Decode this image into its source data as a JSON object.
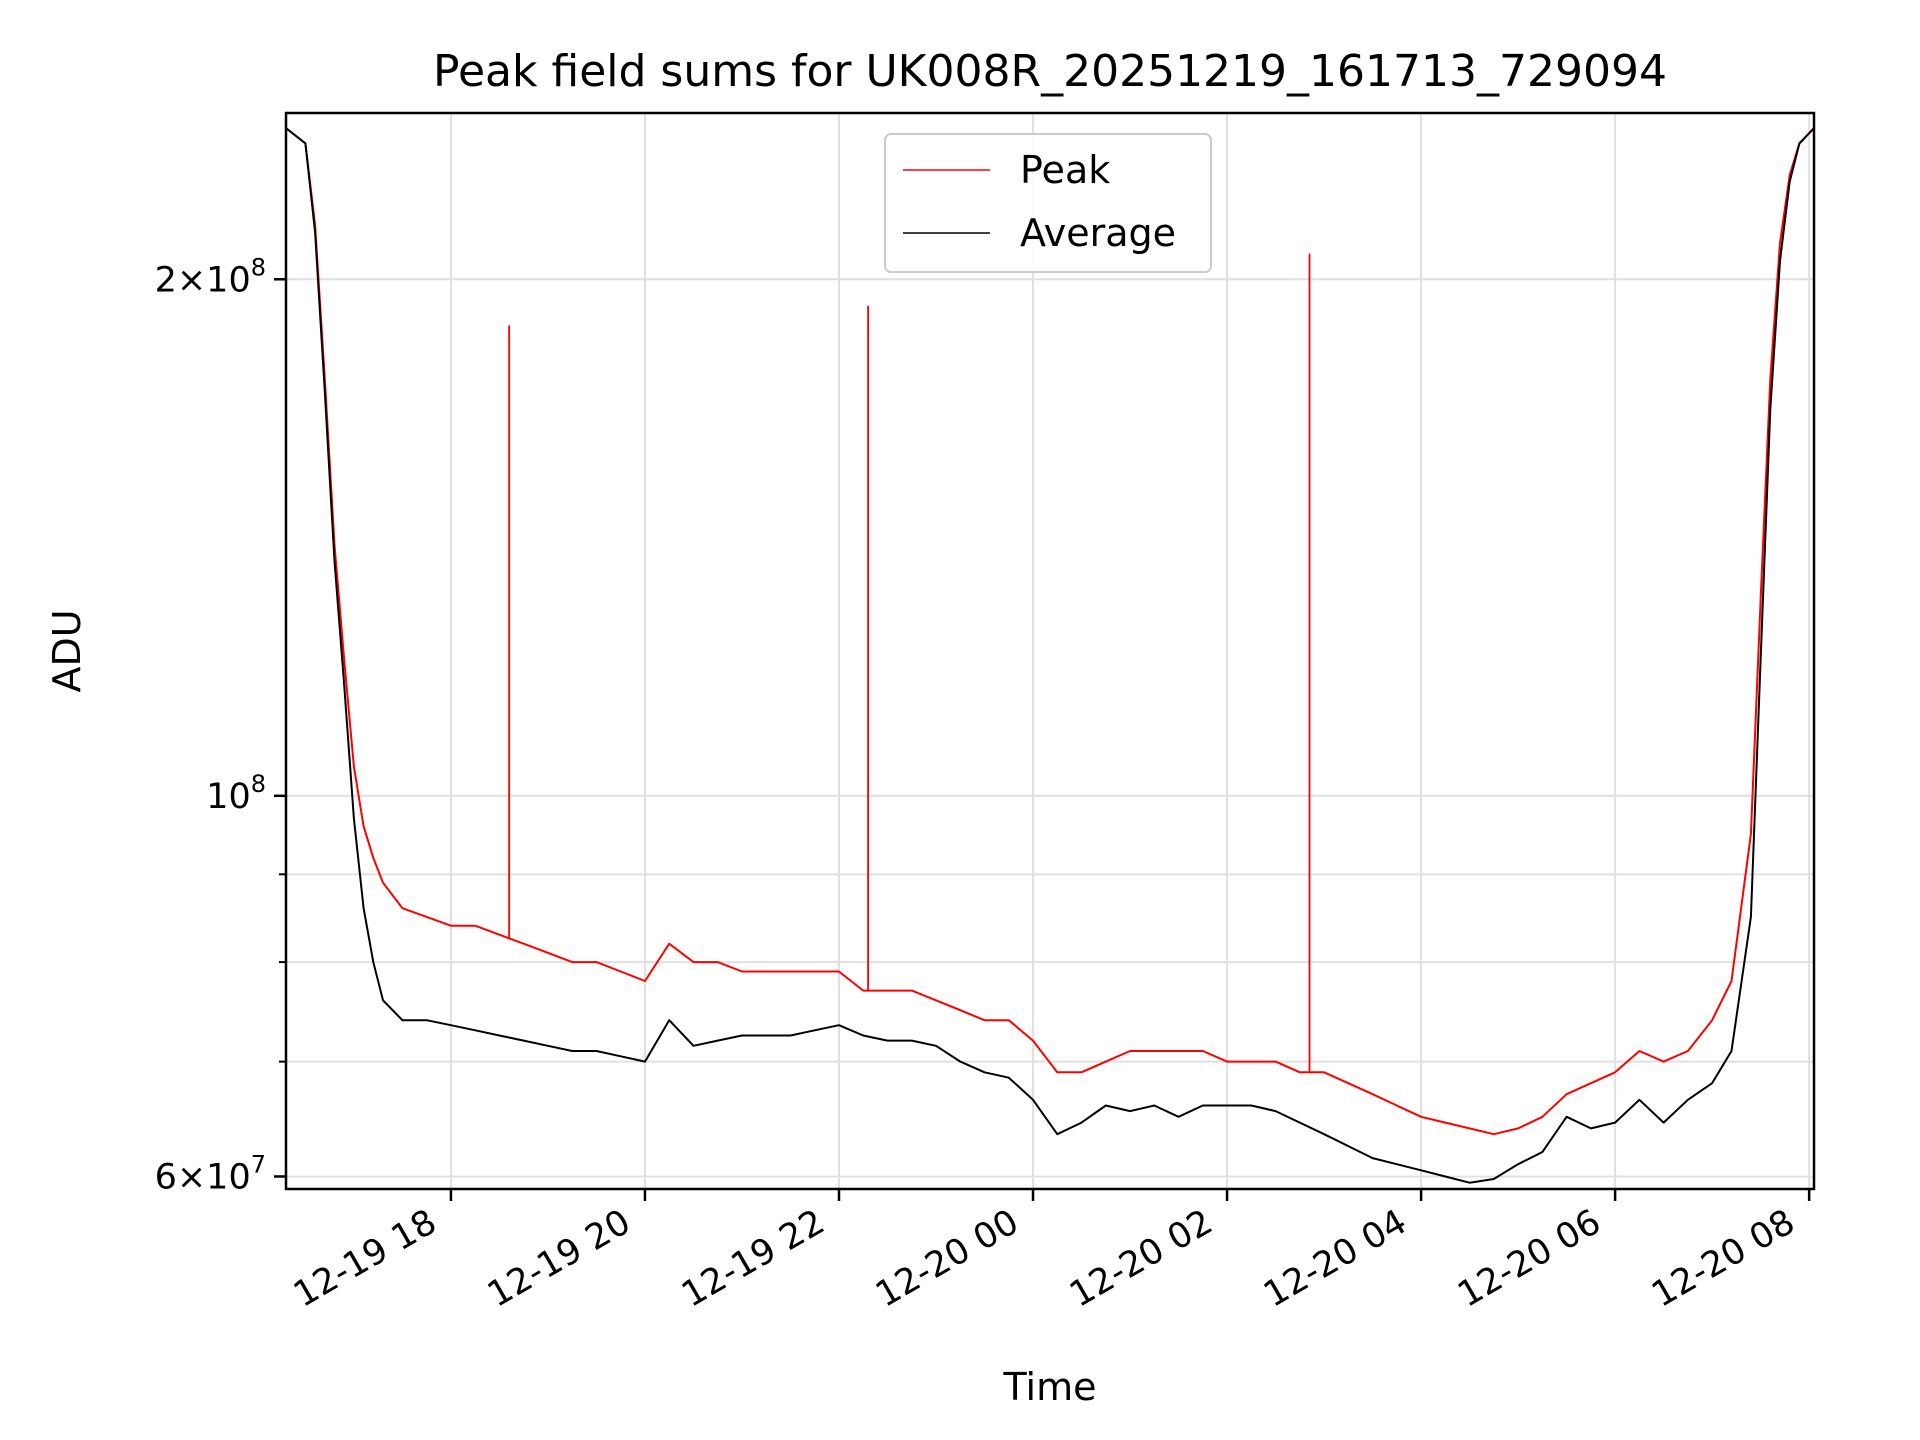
{
  "chart_data": {
    "type": "line",
    "title": "Peak field sums for UK008R_20251219_161713_729094",
    "xlabel": "Time",
    "ylabel": "ADU",
    "yscale": "log",
    "ylim": [
      59000000,
      250000000
    ],
    "xlim_hours": [
      16.3,
      32.05
    ],
    "x_unit": "hours since 2025-12-19 00:00",
    "xticks": [
      {
        "hour": 18,
        "label": "12-19 18"
      },
      {
        "hour": 20,
        "label": "12-19 20"
      },
      {
        "hour": 22,
        "label": "12-19 22"
      },
      {
        "hour": 24,
        "label": "12-20 00"
      },
      {
        "hour": 26,
        "label": "12-20 02"
      },
      {
        "hour": 28,
        "label": "12-20 04"
      },
      {
        "hour": 30,
        "label": "12-20 06"
      },
      {
        "hour": 32,
        "label": "12-20 08"
      }
    ],
    "yticks_major": [
      {
        "value": 60000000,
        "mant": "6",
        "exp": "7"
      },
      {
        "value": 100000000,
        "mant": "",
        "exp": "8"
      },
      {
        "value": 200000000,
        "mant": "2",
        "exp": "8"
      }
    ],
    "yticks_minor": [
      70000000,
      80000000,
      90000000
    ],
    "grid": true,
    "legend_position": "top-center",
    "series": [
      {
        "name": "Peak",
        "color": "#ff0000",
        "x": [
          16.3,
          16.5,
          16.6,
          16.7,
          16.8,
          16.9,
          17.0,
          17.1,
          17.2,
          17.3,
          17.5,
          17.75,
          18.0,
          18.25,
          18.5,
          18.75,
          19.0,
          19.25,
          19.5,
          19.75,
          20.0,
          20.25,
          20.5,
          20.75,
          21.0,
          21.25,
          21.5,
          21.75,
          22.0,
          22.25,
          22.5,
          22.75,
          23.0,
          23.25,
          23.5,
          23.75,
          24.0,
          24.25,
          24.5,
          24.75,
          25.0,
          25.25,
          25.5,
          25.75,
          26.0,
          26.25,
          26.5,
          26.75,
          27.0,
          27.25,
          27.5,
          27.75,
          28.0,
          28.25,
          28.5,
          28.75,
          29.0,
          29.25,
          29.5,
          29.75,
          30.0,
          30.25,
          30.5,
          30.75,
          31.0,
          31.2,
          31.4,
          31.5,
          31.6,
          31.7,
          31.8,
          31.9,
          32.05
        ],
        "y": [
          245000000,
          240000000,
          215000000,
          175000000,
          140000000,
          120000000,
          104000000,
          96000000,
          92000000,
          89000000,
          86000000,
          85000000,
          84000000,
          84000000,
          83000000,
          82000000,
          81000000,
          80000000,
          80000000,
          79000000,
          78000000,
          82000000,
          80000000,
          80000000,
          79000000,
          79000000,
          79000000,
          79000000,
          79000000,
          77000000,
          77000000,
          77000000,
          76000000,
          75000000,
          74000000,
          74000000,
          72000000,
          69000000,
          69000000,
          70000000,
          71000000,
          71000000,
          71000000,
          71000000,
          70000000,
          70000000,
          70000000,
          69000000,
          69000000,
          68000000,
          67000000,
          66000000,
          65000000,
          64500000,
          64000000,
          63500000,
          64000000,
          65000000,
          67000000,
          68000000,
          69000000,
          71000000,
          70000000,
          71000000,
          74000000,
          78000000,
          95000000,
          130000000,
          175000000,
          210000000,
          230000000,
          240000000,
          245000000
        ]
      },
      {
        "name": "Average",
        "color": "#000000",
        "x": [
          16.3,
          16.5,
          16.6,
          16.7,
          16.8,
          16.9,
          17.0,
          17.1,
          17.2,
          17.3,
          17.5,
          17.75,
          18.0,
          18.25,
          18.5,
          18.75,
          19.0,
          19.25,
          19.5,
          19.75,
          20.0,
          20.25,
          20.5,
          20.75,
          21.0,
          21.25,
          21.5,
          21.75,
          22.0,
          22.25,
          22.5,
          22.75,
          23.0,
          23.25,
          23.5,
          23.75,
          24.0,
          24.25,
          24.5,
          24.75,
          25.0,
          25.25,
          25.5,
          25.75,
          26.0,
          26.25,
          26.5,
          26.75,
          27.0,
          27.25,
          27.5,
          27.75,
          28.0,
          28.25,
          28.5,
          28.75,
          29.0,
          29.25,
          29.5,
          29.75,
          30.0,
          30.25,
          30.5,
          30.75,
          31.0,
          31.2,
          31.4,
          31.5,
          31.6,
          31.7,
          31.8,
          31.9,
          32.05
        ],
        "y": [
          245000000,
          240000000,
          213000000,
          172000000,
          137000000,
          116000000,
          97000000,
          86000000,
          80000000,
          76000000,
          74000000,
          74000000,
          73500000,
          73000000,
          72500000,
          72000000,
          71500000,
          71000000,
          71000000,
          70500000,
          70000000,
          74000000,
          71500000,
          72000000,
          72500000,
          72500000,
          72500000,
          73000000,
          73500000,
          72500000,
          72000000,
          72000000,
          71500000,
          70000000,
          69000000,
          68500000,
          66500000,
          63500000,
          64500000,
          66000000,
          65500000,
          66000000,
          65000000,
          66000000,
          66000000,
          66000000,
          65500000,
          64500000,
          63500000,
          62500000,
          61500000,
          61000000,
          60500000,
          60000000,
          59500000,
          59800000,
          61000000,
          62000000,
          65000000,
          64000000,
          64500000,
          66500000,
          64500000,
          66500000,
          68000000,
          71000000,
          85000000,
          120000000,
          168000000,
          205000000,
          228000000,
          240000000,
          245000000
        ]
      }
    ],
    "annotations": [
      {
        "type": "spike",
        "series": "Peak",
        "x": 18.6,
        "y": 188000000
      },
      {
        "type": "spike",
        "series": "Peak",
        "x": 22.3,
        "y": 193000000
      },
      {
        "type": "spike",
        "series": "Peak",
        "x": 26.85,
        "y": 207000000
      }
    ]
  }
}
